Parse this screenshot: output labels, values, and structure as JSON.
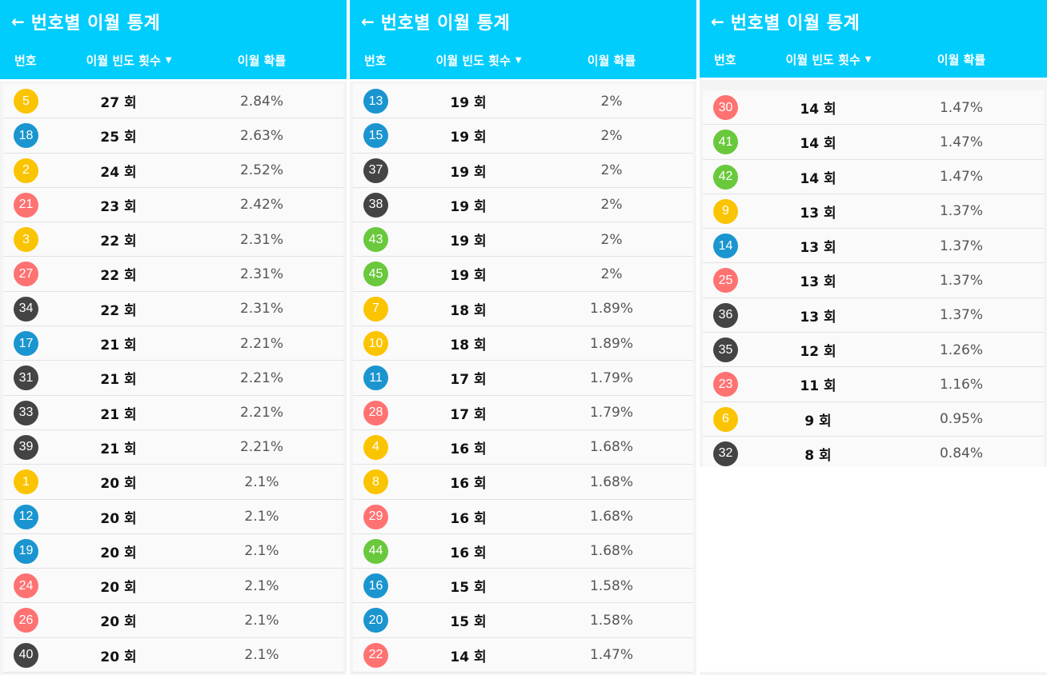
{
  "screens": [
    {
      "title": "번호별 이월 통계",
      "col_number": "번호",
      "col_frequency": "이월 빈도 횟수",
      "col_probability": "이월 확률",
      "rows": [
        {
          "number": "5",
          "count": "27 회",
          "prob": "2.84%",
          "color": "#fbc400"
        },
        {
          "number": "18",
          "count": "25 회",
          "prob": "2.63%",
          "color": "#1a95cf"
        },
        {
          "number": "2",
          "count": "24 회",
          "prob": "2.52%",
          "color": "#fbc400"
        },
        {
          "number": "21",
          "count": "23 회",
          "prob": "2.42%",
          "color": "#ff7272"
        },
        {
          "number": "3",
          "count": "22 회",
          "prob": "2.31%",
          "color": "#fbc400"
        },
        {
          "number": "27",
          "count": "22 회",
          "prob": "2.31%",
          "color": "#ff7272"
        },
        {
          "number": "34",
          "count": "22 회",
          "prob": "2.31%",
          "color": "#444444"
        },
        {
          "number": "17",
          "count": "21 회",
          "prob": "2.21%",
          "color": "#1a95cf"
        },
        {
          "number": "31",
          "count": "21 회",
          "prob": "2.21%",
          "color": "#444444"
        },
        {
          "number": "33",
          "count": "21 회",
          "prob": "2.21%",
          "color": "#444444"
        },
        {
          "number": "39",
          "count": "21 회",
          "prob": "2.21%",
          "color": "#444444"
        },
        {
          "number": "1",
          "count": "20 회",
          "prob": "2.1%",
          "color": "#fbc400"
        },
        {
          "number": "12",
          "count": "20 회",
          "prob": "2.1%",
          "color": "#1a95cf"
        },
        {
          "number": "19",
          "count": "20 회",
          "prob": "2.1%",
          "color": "#1a95cf"
        },
        {
          "number": "24",
          "count": "20 회",
          "prob": "2.1%",
          "color": "#ff7272"
        },
        {
          "number": "26",
          "count": "20 회",
          "prob": "2.1%",
          "color": "#ff7272"
        },
        {
          "number": "40",
          "count": "20 회",
          "prob": "2.1%",
          "color": "#444444"
        }
      ]
    },
    {
      "title": "번호별 이월 통계",
      "col_number": "번호",
      "col_frequency": "이월 빈도 횟수",
      "col_probability": "이월 확률",
      "rows": [
        {
          "number": "13",
          "count": "19 회",
          "prob": "2%",
          "color": "#1a95cf"
        },
        {
          "number": "15",
          "count": "19 회",
          "prob": "2%",
          "color": "#1a95cf"
        },
        {
          "number": "37",
          "count": "19 회",
          "prob": "2%",
          "color": "#444444"
        },
        {
          "number": "38",
          "count": "19 회",
          "prob": "2%",
          "color": "#444444"
        },
        {
          "number": "43",
          "count": "19 회",
          "prob": "2%",
          "color": "#69c83c"
        },
        {
          "number": "45",
          "count": "19 회",
          "prob": "2%",
          "color": "#69c83c"
        },
        {
          "number": "7",
          "count": "18 회",
          "prob": "1.89%",
          "color": "#fbc400"
        },
        {
          "number": "10",
          "count": "18 회",
          "prob": "1.89%",
          "color": "#fbc400"
        },
        {
          "number": "11",
          "count": "17 회",
          "prob": "1.79%",
          "color": "#1a95cf"
        },
        {
          "number": "28",
          "count": "17 회",
          "prob": "1.79%",
          "color": "#ff7272"
        },
        {
          "number": "4",
          "count": "16 회",
          "prob": "1.68%",
          "color": "#fbc400"
        },
        {
          "number": "8",
          "count": "16 회",
          "prob": "1.68%",
          "color": "#fbc400"
        },
        {
          "number": "29",
          "count": "16 회",
          "prob": "1.68%",
          "color": "#ff7272"
        },
        {
          "number": "44",
          "count": "16 회",
          "prob": "1.68%",
          "color": "#69c83c"
        },
        {
          "number": "16",
          "count": "15 회",
          "prob": "1.58%",
          "color": "#1a95cf"
        },
        {
          "number": "20",
          "count": "15 회",
          "prob": "1.58%",
          "color": "#1a95cf"
        },
        {
          "number": "22",
          "count": "14 회",
          "prob": "1.47%",
          "color": "#ff7272"
        }
      ]
    },
    {
      "title": "번호별 이월 통계",
      "col_number": "번호",
      "col_frequency": "이월 빈도 횟수",
      "col_probability": "이월 확률",
      "rows": [
        {
          "number": "30",
          "count": "14 회",
          "prob": "1.47%",
          "color": "#ff7272"
        },
        {
          "number": "41",
          "count": "14 회",
          "prob": "1.47%",
          "color": "#69c83c"
        },
        {
          "number": "42",
          "count": "14 회",
          "prob": "1.47%",
          "color": "#69c83c"
        },
        {
          "number": "9",
          "count": "13 회",
          "prob": "1.37%",
          "color": "#fbc400"
        },
        {
          "number": "14",
          "count": "13 회",
          "prob": "1.37%",
          "color": "#1a95cf"
        },
        {
          "number": "25",
          "count": "13 회",
          "prob": "1.37%",
          "color": "#ff7272"
        },
        {
          "number": "36",
          "count": "13 회",
          "prob": "1.37%",
          "color": "#444444"
        },
        {
          "number": "35",
          "count": "12 회",
          "prob": "1.26%",
          "color": "#444444"
        },
        {
          "number": "23",
          "count": "11 회",
          "prob": "1.16%",
          "color": "#ff7272"
        },
        {
          "number": "6",
          "count": "9 회",
          "prob": "0.95%",
          "color": "#fbc400"
        },
        {
          "number": "32",
          "count": "8 회",
          "prob": "0.84%",
          "color": "#444444"
        }
      ]
    }
  ],
  "icons": {
    "back": "←",
    "sort": "▼"
  }
}
